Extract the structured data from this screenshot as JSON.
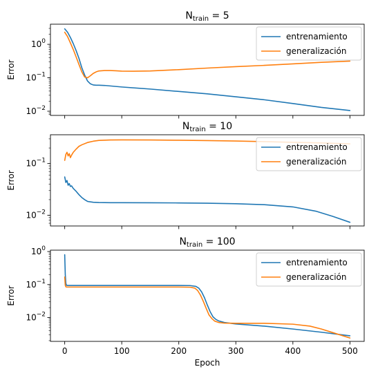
{
  "chart_data": [
    {
      "type": "line",
      "title": "N",
      "title_sub": "train",
      "title_suffix": " = 5",
      "ylabel": "Error",
      "xlabel": "",
      "yscale": "log",
      "ylim": [
        0.0075,
        4.0
      ],
      "xlim": [
        -25,
        525
      ],
      "xticks": [
        0,
        100,
        200,
        300,
        400,
        500
      ],
      "show_xtick_labels": false,
      "yticks": [
        {
          "value": 0.01,
          "base": "10",
          "exp": "−2"
        },
        {
          "value": 0.1,
          "base": "10",
          "exp": "−1"
        },
        {
          "value": 1,
          "base": "10",
          "exp": "0"
        }
      ],
      "legend": "upper right",
      "grid": false,
      "series": [
        {
          "name": "entrenamiento",
          "color": "#1f77b4",
          "x": [
            0,
            5,
            10,
            15,
            20,
            25,
            30,
            35,
            40,
            45,
            50,
            55,
            60,
            70,
            80,
            100,
            150,
            200,
            250,
            300,
            350,
            400,
            450,
            500
          ],
          "y": [
            2.9,
            2.3,
            1.6,
            1.05,
            0.65,
            0.38,
            0.2,
            0.12,
            0.08,
            0.066,
            0.061,
            0.06,
            0.06,
            0.059,
            0.057,
            0.053,
            0.046,
            0.039,
            0.033,
            0.027,
            0.022,
            0.017,
            0.013,
            0.0105
          ]
        },
        {
          "name": "generalización",
          "color": "#ff7f0e",
          "x": [
            0,
            5,
            10,
            15,
            20,
            25,
            30,
            35,
            40,
            45,
            50,
            55,
            60,
            70,
            80,
            90,
            100,
            120,
            150,
            200,
            250,
            300,
            350,
            400,
            450,
            500
          ],
          "y": [
            2.3,
            1.7,
            1.1,
            0.7,
            0.42,
            0.25,
            0.15,
            0.105,
            0.1,
            0.115,
            0.135,
            0.15,
            0.16,
            0.165,
            0.165,
            0.162,
            0.158,
            0.157,
            0.16,
            0.175,
            0.195,
            0.215,
            0.235,
            0.26,
            0.29,
            0.315
          ]
        }
      ]
    },
    {
      "type": "line",
      "title": "N",
      "title_sub": "train",
      "title_suffix": " = 10",
      "ylabel": "Error",
      "xlabel": "",
      "yscale": "log",
      "ylim": [
        0.0062,
        0.36
      ],
      "xlim": [
        -25,
        525
      ],
      "xticks": [
        0,
        100,
        200,
        300,
        400,
        500
      ],
      "show_xtick_labels": false,
      "yticks": [
        {
          "value": 0.01,
          "base": "10",
          "exp": "−2"
        },
        {
          "value": 0.1,
          "base": "10",
          "exp": "−1"
        }
      ],
      "legend": "upper right",
      "grid": false,
      "series": [
        {
          "name": "entrenamiento",
          "color": "#1f77b4",
          "x": [
            0,
            2,
            4,
            6,
            8,
            10,
            12,
            15,
            20,
            25,
            30,
            35,
            40,
            50,
            60,
            80,
            100,
            150,
            200,
            250,
            300,
            350,
            400,
            440,
            470,
            500
          ],
          "y": [
            0.055,
            0.043,
            0.047,
            0.038,
            0.041,
            0.036,
            0.037,
            0.033,
            0.029,
            0.025,
            0.022,
            0.02,
            0.0185,
            0.0178,
            0.0176,
            0.0175,
            0.0175,
            0.0174,
            0.0173,
            0.0171,
            0.0167,
            0.016,
            0.0145,
            0.012,
            0.0095,
            0.0073
          ]
        },
        {
          "name": "generalización",
          "color": "#ff7f0e",
          "x": [
            0,
            2,
            4,
            6,
            8,
            10,
            12,
            15,
            20,
            25,
            30,
            40,
            50,
            60,
            80,
            100,
            150,
            200,
            250,
            300,
            350,
            400,
            450,
            500
          ],
          "y": [
            0.115,
            0.15,
            0.165,
            0.14,
            0.155,
            0.13,
            0.145,
            0.165,
            0.19,
            0.215,
            0.23,
            0.255,
            0.27,
            0.28,
            0.285,
            0.286,
            0.285,
            0.282,
            0.278,
            0.272,
            0.265,
            0.257,
            0.25,
            0.24
          ]
        }
      ]
    },
    {
      "type": "line",
      "title": "N",
      "title_sub": "train",
      "title_suffix": " = 100",
      "ylabel": "Error",
      "xlabel": "Epoch",
      "yscale": "log",
      "ylim": [
        0.0019,
        1.1
      ],
      "xlim": [
        -25,
        525
      ],
      "xticks": [
        0,
        100,
        200,
        300,
        400,
        500
      ],
      "show_xtick_labels": true,
      "yticks": [
        {
          "value": 0.01,
          "base": "10",
          "exp": "−2"
        },
        {
          "value": 0.1,
          "base": "10",
          "exp": "−1"
        },
        {
          "value": 1,
          "base": "10",
          "exp": "0"
        }
      ],
      "legend": "upper right",
      "grid": false,
      "series": [
        {
          "name": "entrenamiento",
          "color": "#1f77b4",
          "x": [
            0,
            1,
            2,
            3,
            5,
            10,
            50,
            100,
            150,
            200,
            220,
            230,
            235,
            240,
            245,
            250,
            255,
            260,
            265,
            270,
            280,
            300,
            350,
            400,
            450,
            500
          ],
          "y": [
            0.8,
            0.2,
            0.11,
            0.095,
            0.094,
            0.094,
            0.094,
            0.094,
            0.094,
            0.094,
            0.093,
            0.088,
            0.078,
            0.06,
            0.04,
            0.024,
            0.015,
            0.0105,
            0.0088,
            0.0079,
            0.0071,
            0.0064,
            0.0055,
            0.0045,
            0.0036,
            0.0028
          ]
        },
        {
          "name": "generalización",
          "color": "#ff7f0e",
          "x": [
            0,
            1,
            2,
            3,
            5,
            10,
            50,
            100,
            150,
            200,
            220,
            228,
            233,
            238,
            243,
            248,
            253,
            258,
            263,
            270,
            280,
            300,
            350,
            400,
            430,
            450,
            470,
            500
          ],
          "y": [
            0.17,
            0.095,
            0.086,
            0.084,
            0.084,
            0.084,
            0.084,
            0.084,
            0.084,
            0.084,
            0.083,
            0.078,
            0.066,
            0.048,
            0.031,
            0.019,
            0.012,
            0.0093,
            0.0078,
            0.0071,
            0.0068,
            0.0067,
            0.0067,
            0.0063,
            0.0055,
            0.0045,
            0.0035,
            0.0024
          ]
        }
      ]
    }
  ]
}
